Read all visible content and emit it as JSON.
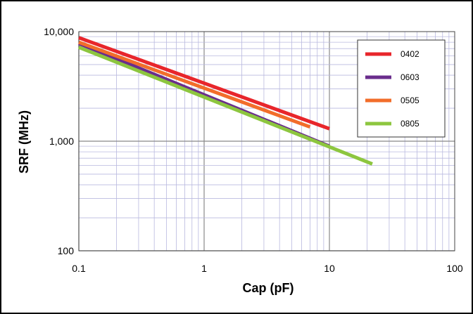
{
  "chart_data": {
    "type": "line",
    "xlabel": "Cap (pF)",
    "ylabel": "SRF (MHz)",
    "xscale": "log",
    "yscale": "log",
    "xlim": [
      0.1,
      100
    ],
    "ylim": [
      100,
      10000
    ],
    "x_ticks": [
      "0.1",
      "1",
      "10",
      "100"
    ],
    "y_ticks": [
      "100",
      "1,000",
      "10,000"
    ],
    "grid": true,
    "legend_position": "top-right",
    "series": [
      {
        "name": "0402",
        "color": "#e8262b",
        "x": [
          0.1,
          10
        ],
        "y": [
          8800,
          1300
        ]
      },
      {
        "name": "0603",
        "color": "#6a2d8c",
        "x": [
          0.1,
          10
        ],
        "y": [
          7800,
          900
        ]
      },
      {
        "name": "0505",
        "color": "#f26d2a",
        "x": [
          0.1,
          7
        ],
        "y": [
          8000,
          1350
        ]
      },
      {
        "name": "0805",
        "color": "#8dc63f",
        "x": [
          0.1,
          22
        ],
        "y": [
          7200,
          620
        ]
      }
    ]
  }
}
